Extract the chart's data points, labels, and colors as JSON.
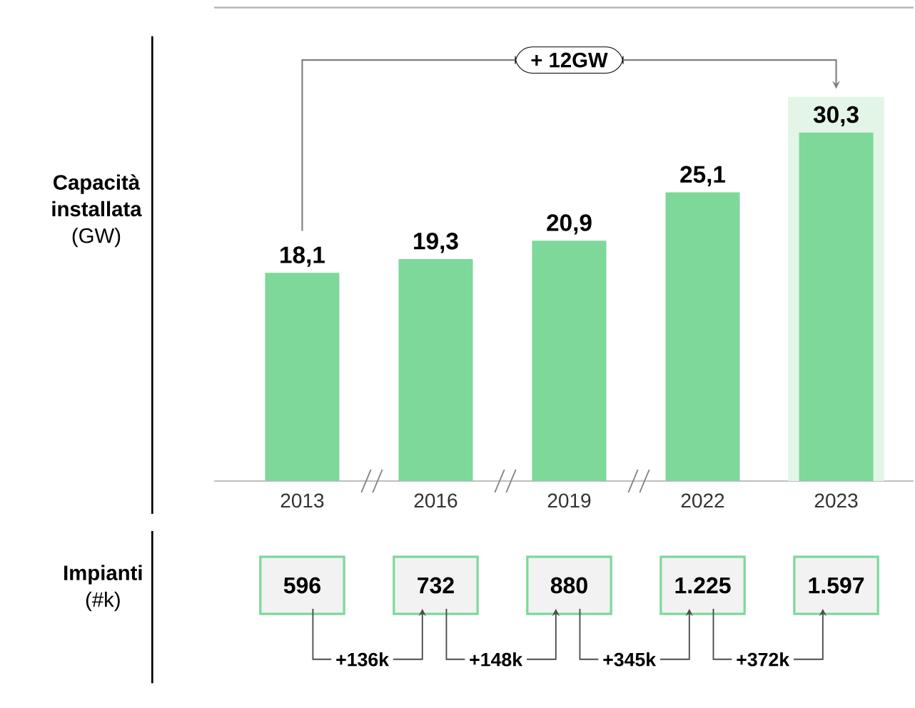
{
  "chart_data": {
    "type": "bar",
    "ylabel": "**Capacità installata** (GW)",
    "categories": [
      "2013",
      "2016",
      "2019",
      "2022",
      "2023"
    ],
    "values": [
      18.1,
      19.3,
      20.9,
      25.1,
      30.3
    ],
    "value_labels": [
      "18,1",
      "19,3",
      "20,9",
      "25,1",
      "30,3"
    ],
    "color": "#7dd89a",
    "bands": [
      {
        "axis": "x",
        "from": "2023",
        "to": "2023",
        "color": "#e3f5e7"
      }
    ],
    "annotations": [
      "+ 12GW",
      "**Impianti** (#k)",
      "596",
      "732",
      "880",
      "1.225",
      "1.597",
      "+136k",
      "+148k",
      "+345k",
      "+372k"
    ]
  }
}
